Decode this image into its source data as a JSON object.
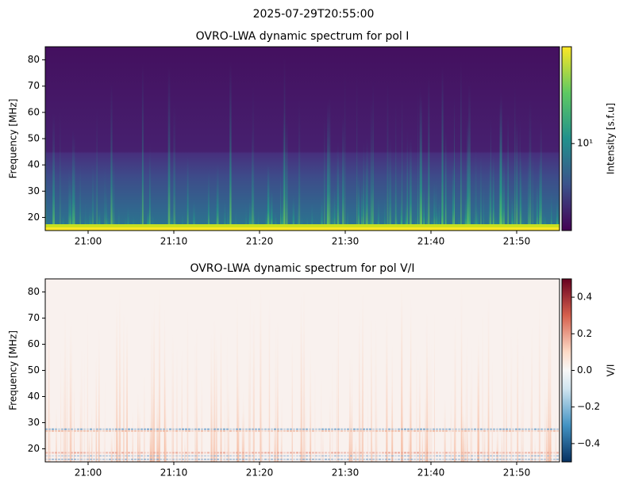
{
  "suptitle": "2025-07-29T20:55:00",
  "chart_data": [
    {
      "type": "heatmap",
      "title": "OVRO-LWA dynamic spectrum for pol I",
      "ylabel": "Frequency [MHz]",
      "xlim": [
        "20:55",
        "21:55"
      ],
      "xticks": [
        "21:00",
        "21:10",
        "21:20",
        "21:30",
        "21:40",
        "21:50"
      ],
      "ylim": [
        15,
        85
      ],
      "yticks": [
        20,
        30,
        40,
        50,
        60,
        70,
        80
      ],
      "colorbar": {
        "label": "Intensity [s.f.u]",
        "cmap": "viridis",
        "log": true,
        "lim": [
          2,
          60
        ],
        "ticks": [
          {
            "value": 10,
            "label": "10¹"
          }
        ]
      }
    },
    {
      "type": "heatmap",
      "title": "OVRO-LWA dynamic spectrum for pol V/I",
      "ylabel": "Frequency [MHz]",
      "xlim": [
        "20:55",
        "21:55"
      ],
      "xticks": [
        "21:00",
        "21:10",
        "21:20",
        "21:30",
        "21:40",
        "21:50"
      ],
      "ylim": [
        15,
        85
      ],
      "yticks": [
        20,
        30,
        40,
        50,
        60,
        70,
        80
      ],
      "colorbar": {
        "label": "V/I",
        "cmap": "RdBu_r",
        "log": false,
        "lim": [
          -0.5,
          0.5
        ],
        "ticks": [
          {
            "value": -0.4,
            "label": "−0.4"
          },
          {
            "value": -0.2,
            "label": "−0.2"
          },
          {
            "value": 0,
            "label": "0.0"
          },
          0.2,
          0.4
        ]
      }
    }
  ]
}
